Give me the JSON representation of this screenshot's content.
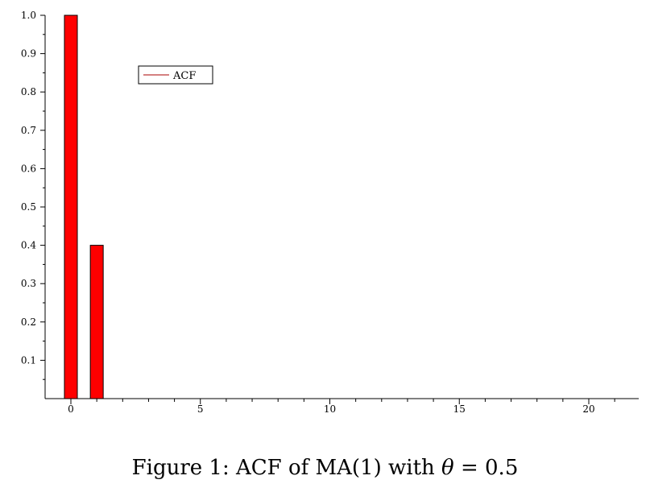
{
  "chart_data": {
    "type": "bar",
    "x": [
      0,
      1
    ],
    "values": [
      1.0,
      0.4
    ],
    "bar_color": "#ff0000",
    "legend_line_color": "#aa0000",
    "series": [
      {
        "name": "ACF",
        "x": [
          0,
          1
        ],
        "values": [
          1.0,
          0.4
        ]
      }
    ],
    "xlim": [
      -1,
      22
    ],
    "ylim": [
      0,
      1.0
    ],
    "x_ticks": [
      "0",
      "5",
      "10",
      "15",
      "20"
    ],
    "y_ticks": [
      "0.1",
      "0.2",
      "0.3",
      "0.4",
      "0.5",
      "0.6",
      "0.7",
      "0.8",
      "0.9",
      "1.0"
    ],
    "grid": false,
    "legend_position": "top-left"
  },
  "caption": {
    "prefix": "Figure 1:  ACF of MA(1) with ",
    "symbol": "θ",
    "suffix": " = 0.5"
  }
}
